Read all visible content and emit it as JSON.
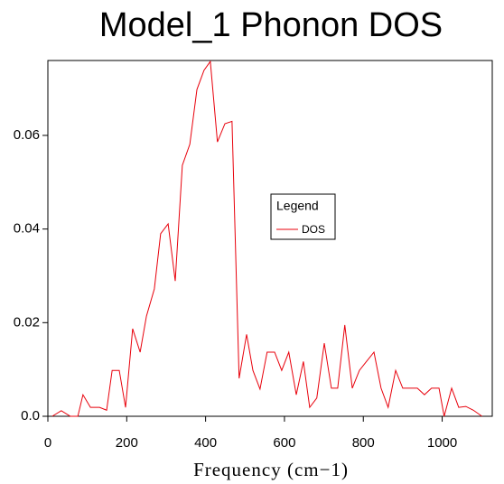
{
  "chart_data": {
    "type": "line",
    "title": "Model_1 Phonon DOS",
    "x_label": "Frequency (cm−1)",
    "legend_title": "Legend",
    "legend": "center-right",
    "xlim": [
      0,
      1127
    ],
    "ylim": [
      0,
      0.076
    ],
    "xticks": [
      0,
      200,
      400,
      600,
      800,
      1000
    ],
    "yticks": [
      {
        "value": 0,
        "label": "0.0"
      },
      0.02,
      0.04,
      0.06
    ],
    "series": [
      {
        "name": "DOS",
        "color": "#e8000b",
        "x": [
          11,
          34,
          57,
          76,
          89,
          108,
          131,
          149,
          163,
          181,
          197,
          215,
          234,
          250,
          270,
          286,
          305,
          323,
          341,
          360,
          378,
          396,
          412,
          430,
          449,
          467,
          485,
          504,
          520,
          538,
          556,
          575,
          593,
          611,
          630,
          648,
          664,
          682,
          701,
          719,
          735,
          753,
          772,
          790,
          808,
          827,
          845,
          863,
          882,
          900,
          918,
          937,
          955,
          973,
          992,
          1005,
          1024,
          1042,
          1060,
          1079,
          1101
        ],
        "values": [
          0,
          0.0012,
          0,
          0,
          0.0046,
          0.0019,
          0.0019,
          0.0013,
          0.0098,
          0.0098,
          0.0019,
          0.0187,
          0.0137,
          0.0214,
          0.0272,
          0.039,
          0.0411,
          0.0289,
          0.0536,
          0.0581,
          0.0698,
          0.0739,
          0.0758,
          0.0586,
          0.0625,
          0.063,
          0.0081,
          0.0175,
          0.0098,
          0.0058,
          0.0137,
          0.0137,
          0.0098,
          0.0137,
          0.0046,
          0.0117,
          0.0019,
          0.0039,
          0.0156,
          0.006,
          0.006,
          0.0195,
          0.006,
          0.0098,
          0.0117,
          0.0137,
          0.006,
          0.0019,
          0.0098,
          0.006,
          0.006,
          0.006,
          0.0046,
          0.006,
          0.006,
          0,
          0.006,
          0.0019,
          0.0021,
          0.0013,
          0
        ]
      }
    ]
  }
}
